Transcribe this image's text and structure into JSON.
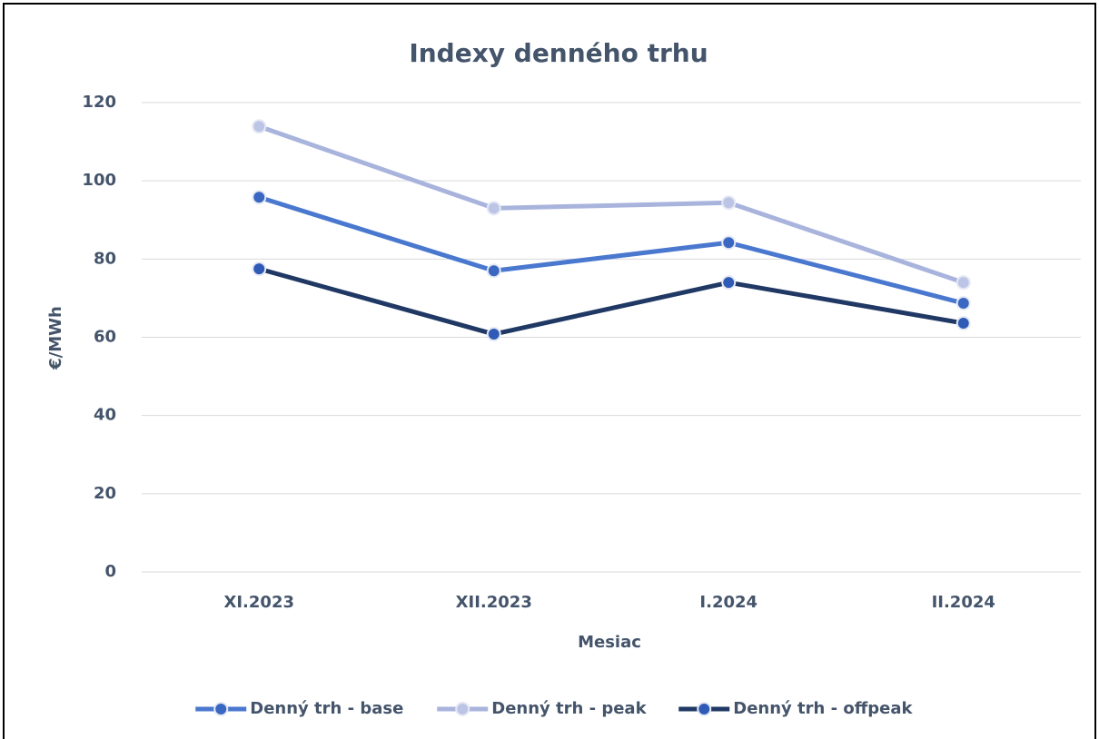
{
  "chart_data": {
    "type": "line",
    "title": "Indexy denného trhu",
    "x_label": "Mesiac",
    "y_label": "€/MWh",
    "categories": [
      "XI.2023",
      "XII.2023",
      "I.2024",
      "II.2024"
    ],
    "series": [
      {
        "name": "Denný trh - base",
        "color": "#4a78cf",
        "marker_color": "#3a67c2",
        "values": [
          95.8,
          77.0,
          84.2,
          68.7
        ]
      },
      {
        "name": "Denný trh - peak",
        "color": "#a9b4dd",
        "marker_color": "#bcc5e6",
        "values": [
          113.9,
          93.0,
          94.4,
          74.0
        ]
      },
      {
        "name": "Denný trh - offpeak",
        "color": "#203864",
        "marker_color": "#2f5bb7",
        "values": [
          77.5,
          60.8,
          74.0,
          63.6
        ]
      }
    ],
    "ylim": [
      0,
      120
    ],
    "yticks": [
      0,
      20,
      40,
      60,
      80,
      100,
      120
    ],
    "grid": true,
    "legend": "bottom"
  }
}
